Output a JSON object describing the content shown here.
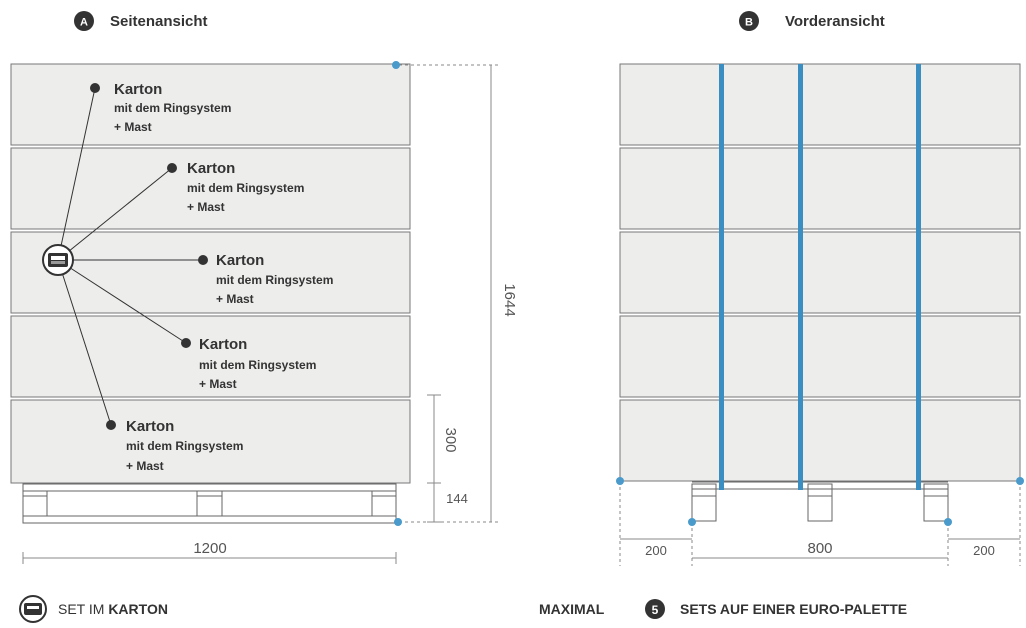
{
  "view_a": {
    "badge": "A",
    "title": "Seitenansicht"
  },
  "view_b": {
    "badge": "B",
    "title": "Vorderansicht"
  },
  "box_labels": [
    {
      "title": "Karton",
      "line2": "mit dem Ringsystem",
      "line3": "+ Mast"
    },
    {
      "title": "Karton",
      "line2": "mit dem Ringsystem",
      "line3": "+ Mast"
    },
    {
      "title": "Karton",
      "line2": "mit dem Ringsystem",
      "line3": "+ Mast"
    },
    {
      "title": "Karton",
      "line2": "mit dem Ringsystem",
      "line3": "+ Mast"
    },
    {
      "title": "Karton",
      "line2": "mit dem Ringsystem",
      "line3": "+ Mast"
    }
  ],
  "dimensions": {
    "total_height": "1644",
    "box_height": "300",
    "pallet_height": "144",
    "side_width": "1200",
    "front_left": "200",
    "front_middle": "800",
    "front_right": "200"
  },
  "legend": {
    "prefix": "SET IM ",
    "bold": "KARTON",
    "icon": "box-icon"
  },
  "footer": {
    "prefix": "MAXIMAL",
    "count": "5",
    "suffix": "SETS AUF EINER EURO-PALETTE"
  },
  "colors": {
    "box_fill": "#edeeec",
    "outline": "#666666",
    "strap": "#3a8ec2",
    "dot": "#4a9acb",
    "dark": "#333333"
  }
}
